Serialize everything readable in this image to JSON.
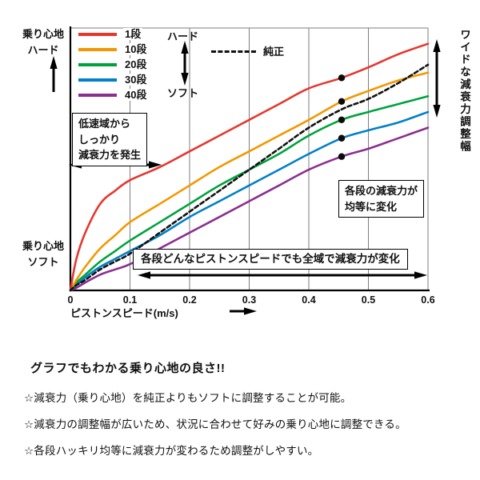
{
  "chart_data": {
    "type": "line",
    "title": "",
    "xlabel": "ピストンスピード(m/s)",
    "ylabel": "",
    "xlim": [
      0,
      0.6
    ],
    "ylim": [
      0,
      100
    ],
    "grid": "vertical",
    "x_ticks": [
      "0",
      "0.1",
      "0.2",
      "0.3",
      "0.4",
      "0.5",
      "0.6"
    ],
    "y_top_label": "乗り心地\nハード",
    "y_bottom_label": "乗り心地\nソフト",
    "x": [
      0,
      0.01,
      0.025,
      0.05,
      0.075,
      0.1,
      0.15,
      0.2,
      0.25,
      0.3,
      0.35,
      0.4,
      0.455,
      0.5,
      0.55,
      0.6
    ],
    "series": [
      {
        "name": "1段",
        "color": "#e5372e",
        "dashed": false,
        "values": [
          0,
          12,
          22,
          33,
          38,
          42,
          47,
          53,
          59,
          65,
          71,
          77,
          81,
          85,
          90,
          94
        ]
      },
      {
        "name": "10段",
        "color": "#f39800",
        "dashed": false,
        "values": [
          0,
          4,
          9,
          16,
          21,
          26,
          33,
          40,
          47,
          53,
          59,
          65,
          72,
          76,
          80,
          83
        ]
      },
      {
        "name": "20段",
        "color": "#00a23e",
        "dashed": false,
        "values": [
          0,
          3,
          6,
          11,
          15,
          19,
          26,
          33,
          40,
          46,
          52,
          59,
          65,
          68,
          71,
          74
        ]
      },
      {
        "name": "30段",
        "color": "#0080c8",
        "dashed": false,
        "values": [
          0,
          2,
          5,
          9,
          12,
          15,
          21,
          28,
          34,
          40,
          46,
          52,
          58,
          61,
          64,
          68
        ]
      },
      {
        "name": "40段",
        "color": "#8b2f8f",
        "dashed": false,
        "values": [
          0,
          1,
          3,
          6,
          8,
          10,
          16,
          22,
          28,
          34,
          40,
          46,
          51,
          54,
          58,
          62
        ]
      },
      {
        "name": "純正",
        "color": "#111111",
        "dashed": true,
        "values": [
          0,
          2,
          4,
          8,
          11,
          14,
          22,
          30,
          38,
          46,
          54,
          62,
          69,
          73,
          79,
          86
        ]
      }
    ],
    "dots": {
      "x": 0.455,
      "y": [
        81,
        72,
        65,
        58,
        51
      ],
      "color": "#0a0a0a"
    }
  },
  "legend": {
    "hard_label": "ハード",
    "soft_label": "ソフト"
  },
  "annotations": {
    "low_speed": "低速域から\nしっかり\n減衰力を発生",
    "equal_change": "各段の減衰力が\n均等に変化",
    "full_range": "各段どんなピストンスピードでも全域で減衰力が変化",
    "wide_range": "ワイドな減衰力調整幅"
  },
  "footer": {
    "heading": "グラフでもわかる乗り心地の良さ!!",
    "bullets": [
      "☆減衰力（乗り心地）を純正よりもソフトに調整することが可能。",
      "☆減衰力の調整幅が広いため、状況に合わせて好みの乗り心地に調整できる。",
      "☆各段ハッキリ均等に減衰力が変わるため調整がしやすい。"
    ]
  }
}
